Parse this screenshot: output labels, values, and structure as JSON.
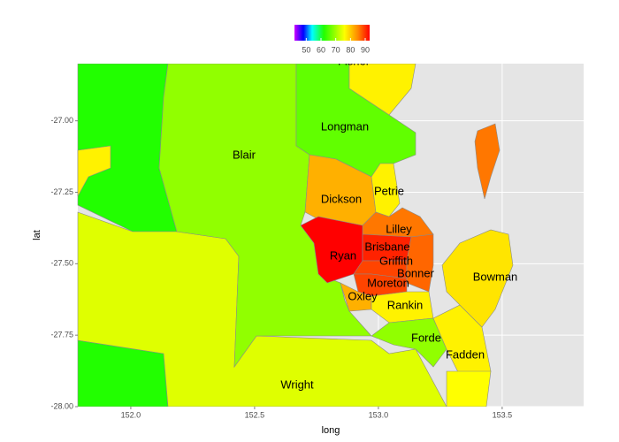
{
  "chart_data": {
    "type": "choropleth",
    "xlabel": "long",
    "ylabel": "lat",
    "xlim": [
      151.786,
      153.829
    ],
    "ylim": [
      -28.0,
      -26.8
    ],
    "xticks": [
      {
        "value": 152.0,
        "label": "152.0"
      },
      {
        "value": 152.5,
        "label": "152.5"
      },
      {
        "value": 153.0,
        "label": "153.0"
      },
      {
        "value": 153.5,
        "label": "153.5"
      }
    ],
    "yticks": [
      {
        "value": -27.0,
        "label": "-27.00"
      },
      {
        "value": -27.25,
        "label": "-27.25"
      },
      {
        "value": -27.5,
        "label": "-27.50"
      },
      {
        "value": -27.75,
        "label": "-27.75"
      },
      {
        "value": -28.0,
        "label": "-28.00"
      }
    ],
    "grid": true,
    "colorbar": {
      "lim": [
        42,
        93
      ],
      "ticks": [
        50,
        60,
        70,
        80,
        90
      ],
      "scale": [
        {
          "value": 42,
          "color": "#cc00ff"
        },
        {
          "value": 48,
          "color": "#0000ff"
        },
        {
          "value": 54,
          "color": "#00ffff"
        },
        {
          "value": 62,
          "color": "#22ff00"
        },
        {
          "value": 76,
          "color": "#ffff00"
        },
        {
          "value": 85,
          "color": "#ff8800"
        },
        {
          "value": 93,
          "color": "#ff0000"
        }
      ]
    },
    "regions": [
      {
        "value": 62
      },
      {
        "value": 62
      },
      {
        "value": 77
      },
      {
        "name": "Wright",
        "value": 74
      },
      {
        "name": "Blair",
        "value": 69
      },
      {
        "name": "Longman",
        "value": 66
      },
      {
        "name": "Fisher",
        "value": 77
      },
      {
        "name": "Dickson",
        "value": 82
      },
      {
        "name": "Petrie",
        "value": 77
      },
      {
        "name": "Lilley",
        "value": 86
      },
      {
        "name": "Ryan",
        "value": 93
      },
      {
        "name": "Brisbane",
        "value": 91
      },
      {
        "name": "Griffith",
        "value": 89
      },
      {
        "name": "Bonner",
        "value": 87
      },
      {
        "name": "Moreton",
        "value": 89
      },
      {
        "name": "Oxley",
        "value": 82
      },
      {
        "name": "Rankin",
        "value": 77
      },
      {
        "name": "Forde",
        "value": 69
      },
      {
        "name": "Fadden",
        "value": 77
      },
      {
        "name": "Bowman",
        "value": 78
      },
      {
        "value": 76
      },
      {
        "value": 86
      }
    ]
  }
}
